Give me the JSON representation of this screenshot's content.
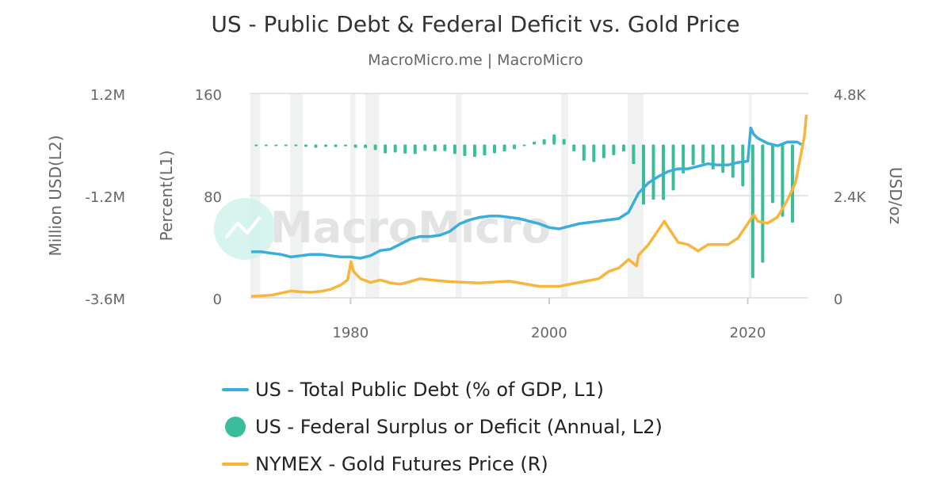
{
  "chart_data": {
    "type": "line",
    "title": "US - Public Debt & Federal Deficit vs. Gold Price",
    "subtitle": "MacroMicro.me | MacroMicro",
    "watermark": "MacroMicro",
    "x_range": [
      1970,
      2026.1
    ],
    "x_ticks": [
      "1980",
      "2000",
      "2020"
    ],
    "grid": true,
    "legend_placement": "bottom",
    "axes": {
      "left2": {
        "label": "Million USD(L2)",
        "range": [
          -3600000,
          1200000
        ],
        "ticks": [
          "1.2M",
          "-1.2M",
          "-3.6M"
        ]
      },
      "left1": {
        "label": "Percent(L1)",
        "range": [
          0,
          160
        ],
        "ticks": [
          "160",
          "80",
          "0"
        ]
      },
      "right": {
        "label": "USD/oz",
        "range": [
          0,
          4800
        ],
        "ticks": [
          "4.8K",
          "2.4K",
          "0"
        ]
      }
    },
    "recessions": [
      [
        1969.9,
        1970.9
      ],
      [
        1973.9,
        1975.2
      ],
      [
        1980.0,
        1980.5
      ],
      [
        1981.5,
        1982.9
      ],
      [
        1990.6,
        1991.2
      ],
      [
        2001.2,
        2001.9
      ],
      [
        2007.9,
        2009.5
      ],
      [
        2020.1,
        2020.4
      ]
    ],
    "series": [
      {
        "name": "US - Total Public Debt (% of GDP, L1)",
        "type": "line",
        "axis": "left1",
        "color": "#3aaedb",
        "x": [
          1970,
          1971,
          1972,
          1973,
          1974,
          1975,
          1976,
          1977,
          1978,
          1979,
          1980,
          1981,
          1982,
          1983,
          1984,
          1985,
          1986,
          1987,
          1988,
          1989,
          1990,
          1991,
          1992,
          1993,
          1994,
          1995,
          1996,
          1997,
          1998,
          1999,
          2000,
          2001,
          2002,
          2003,
          2004,
          2005,
          2006,
          2007,
          2008,
          2009,
          2010,
          2011,
          2012,
          2013,
          2014,
          2015,
          2016,
          2017,
          2018,
          2019,
          2020.0,
          2020.3,
          2020.6,
          2021,
          2022,
          2023,
          2024,
          2025,
          2025.4
        ],
        "y": [
          36,
          36,
          35,
          34,
          32,
          33,
          34,
          34,
          33,
          32,
          32,
          31,
          33,
          37,
          38,
          42,
          46,
          48,
          48,
          49,
          52,
          58,
          61,
          63,
          64,
          64,
          63,
          62,
          60,
          58,
          55,
          54,
          56,
          58,
          59,
          60,
          61,
          62,
          67,
          82,
          90,
          95,
          99,
          101,
          101,
          103,
          105,
          104,
          104,
          106,
          107,
          133,
          128,
          125,
          121,
          119,
          122,
          122,
          120
        ]
      },
      {
        "name": "US - Federal Surplus or Deficit (Annual, L2)",
        "type": "bar",
        "axis": "left2",
        "color": "#39bd9b",
        "x": [
          1970,
          1971,
          1972,
          1973,
          1974,
          1975,
          1976,
          1977,
          1978,
          1979,
          1980,
          1981,
          1982,
          1983,
          1984,
          1985,
          1986,
          1987,
          1988,
          1989,
          1990,
          1991,
          1992,
          1993,
          1994,
          1995,
          1996,
          1997,
          1998,
          1999,
          2000,
          2001,
          2002,
          2003,
          2004,
          2005,
          2006,
          2007,
          2008,
          2009,
          2010,
          2011,
          2012,
          2013,
          2014,
          2015,
          2016,
          2017,
          2018,
          2019,
          2020,
          2021,
          2022,
          2023,
          2024
        ],
        "y": [
          -2842,
          -23033,
          -23373,
          -14908,
          -6135,
          -53242,
          -73732,
          -53659,
          -59185,
          -40726,
          -73830,
          -78968,
          -127977,
          -207802,
          -185367,
          -212308,
          -221227,
          -149730,
          -155178,
          -152639,
          -221036,
          -269238,
          -290321,
          -255051,
          -203186,
          -163952,
          -107431,
          -21884,
          69270,
          125610,
          236241,
          128236,
          -157758,
          -377585,
          -412727,
          -318346,
          -248181,
          -160701,
          -458553,
          -1412688,
          -1294373,
          -1299593,
          -1076573,
          -679775,
          -484602,
          -441960,
          -584651,
          -665446,
          -779137,
          -983588,
          -3131917,
          -2775298,
          -1375477,
          -1695243,
          -1832817
        ]
      },
      {
        "name": "NYMEX - Gold Futures Price (R)",
        "type": "line",
        "axis": "right",
        "color": "#f7b53c",
        "x": [
          1970,
          1972,
          1973,
          1974,
          1975,
          1976,
          1977,
          1978,
          1979,
          1979.7,
          1980.05,
          1980.3,
          1981,
          1982,
          1983,
          1984,
          1985,
          1986,
          1987,
          1988,
          1990,
          1993,
          1996,
          1999,
          2001,
          2003,
          2005,
          2006,
          2007,
          2008,
          2008.8,
          2009,
          2010,
          2011.6,
          2012,
          2013,
          2014,
          2015,
          2016,
          2018,
          2019,
          2020.6,
          2021,
          2022,
          2023,
          2024,
          2024.8,
          2025.3,
          2025.7,
          2025.9
        ],
        "y": [
          35,
          60,
          110,
          160,
          140,
          130,
          150,
          200,
          300,
          420,
          850,
          620,
          450,
          360,
          420,
          350,
          320,
          380,
          450,
          420,
          380,
          350,
          390,
          270,
          270,
          360,
          450,
          620,
          700,
          900,
          750,
          1000,
          1250,
          1800,
          1650,
          1300,
          1250,
          1100,
          1250,
          1250,
          1400,
          1950,
          1800,
          1750,
          1900,
          2300,
          2700,
          3300,
          3800,
          4300
        ]
      }
    ]
  }
}
